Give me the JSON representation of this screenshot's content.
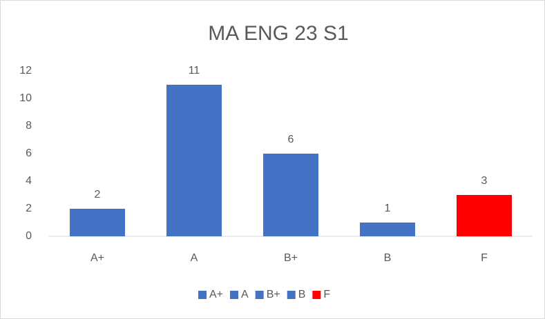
{
  "chart_data": {
    "type": "bar",
    "title": "MA ENG 23 S1",
    "categories": [
      "A+",
      "A",
      "B+",
      "B",
      "F"
    ],
    "values": [
      2,
      11,
      6,
      1,
      3
    ],
    "colors": [
      "#4472c4",
      "#4472c4",
      "#4472c4",
      "#4472c4",
      "#ff0000"
    ],
    "ylim": [
      0,
      12
    ],
    "yticks": [
      0,
      2,
      4,
      6,
      8,
      10,
      12
    ],
    "grid": false,
    "legend": "bottom"
  }
}
